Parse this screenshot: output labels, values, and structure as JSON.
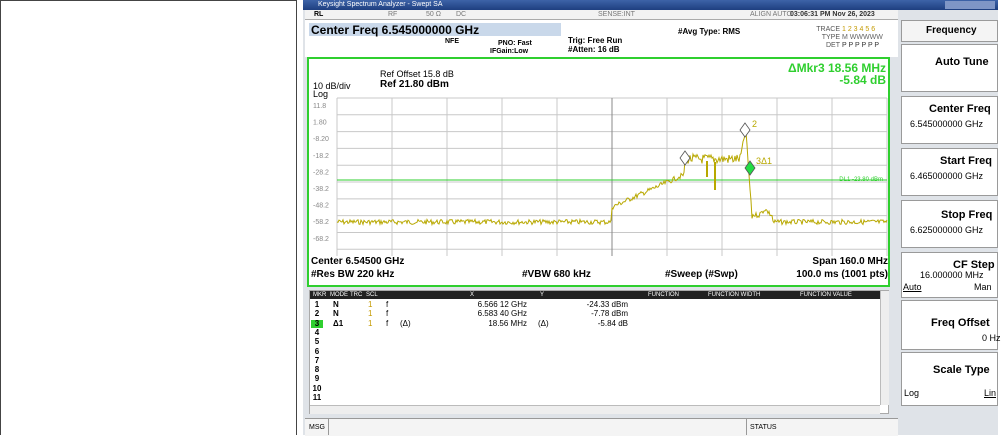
{
  "window": {
    "title": "Keysight Spectrum Analyzer - Swept SA"
  },
  "status_row": {
    "rl": "RL",
    "rf": "RF",
    "impedance": "50 Ω",
    "coupling": "DC",
    "sense": "SENSE:INT",
    "align": "ALIGN AUTO",
    "datetime": "03:06:31 PM Nov 26, 2023"
  },
  "header": {
    "center_freq": "Center Freq 6.545000000 GHz",
    "nfe": "NFE",
    "pno": "PNO: Fast",
    "ifgain": "IFGain:Low",
    "trig": "Trig: Free Run",
    "atten": "#Atten: 16 dB",
    "avg_type": "#Avg Type: RMS",
    "trace_label": "TRACE",
    "trace_values": "1 2 3 4 5 6",
    "type_label": "TYPE",
    "type_values": "M WWWWW",
    "det_label": "DET",
    "det_values": "P P P P P P"
  },
  "plot": {
    "ref_offset": "Ref Offset 15.8 dB",
    "ref_level": "Ref 21.80 dBm",
    "scale": "10 dB/div",
    "scale_type": "Log",
    "delta_marker": "ΔMkr3 18.56 MHz",
    "delta_value": "-5.84 dB",
    "y_labels": [
      "11.8",
      "1.80",
      "-8.20",
      "-18.2",
      "-28.2",
      "-38.2",
      "-48.2",
      "-58.2",
      "-68.2"
    ],
    "display_line": "DL1 -23.80 dBm",
    "marker2_label": "2",
    "marker3_label": "3Δ1",
    "center": "Center 6.54500 GHz",
    "span": "Span 160.0 MHz",
    "res_bw": "#Res BW 220 kHz",
    "vbw": "#VBW 680 kHz",
    "sweep": "#Sweep (#Swp)",
    "sweep_time": "100.0 ms (1001 pts)"
  },
  "marker_table": {
    "headers": [
      "MKR",
      "MODE",
      "TRC",
      "SCL",
      "X",
      "Y",
      "FUNCTION",
      "FUNCTION WIDTH",
      "FUNCTION VALUE"
    ],
    "rows": [
      {
        "mkr": "1",
        "mode": "N",
        "trc": "1",
        "scl": "f",
        "x": "6.566 12 GHz",
        "y": "-24.33 dBm"
      },
      {
        "mkr": "2",
        "mode": "N",
        "trc": "1",
        "scl": "f",
        "x": "6.583 40 GHz",
        "y": "-7.78 dBm"
      },
      {
        "mkr": "3",
        "mode": "Δ1",
        "trc": "1",
        "scl": "f",
        "func": "(Δ)",
        "x": "18.56 MHz",
        "xd": "(Δ)",
        "y": "-5.84 dB"
      },
      {
        "mkr": "4"
      },
      {
        "mkr": "5"
      },
      {
        "mkr": "6"
      },
      {
        "mkr": "7"
      },
      {
        "mkr": "8"
      },
      {
        "mkr": "9"
      },
      {
        "mkr": "10"
      },
      {
        "mkr": "11"
      }
    ]
  },
  "status_bar": {
    "msg": "MSG",
    "status": "STATUS"
  },
  "softkeys": {
    "menu": "Frequency",
    "auto_tune": "Auto Tune",
    "center_freq": {
      "label": "Center Freq",
      "value": "6.545000000 GHz"
    },
    "start_freq": {
      "label": "Start Freq",
      "value": "6.465000000 GHz"
    },
    "stop_freq": {
      "label": "Stop Freq",
      "value": "6.625000000 GHz"
    },
    "cf_step": {
      "label": "CF Step",
      "value": "16.000000 MHz",
      "auto": "Auto",
      "man": "Man"
    },
    "freq_offset": {
      "label": "Freq Offset",
      "value": "0 Hz"
    },
    "scale_type": {
      "label": "Scale Type",
      "log": "Log",
      "lin": "Lin"
    }
  }
}
